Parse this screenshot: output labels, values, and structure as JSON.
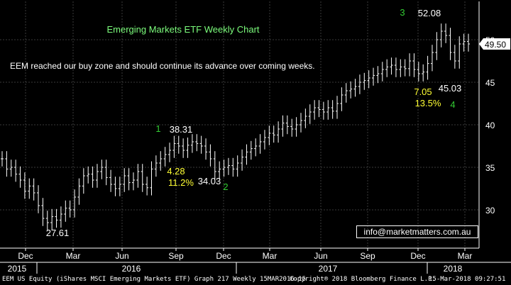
{
  "chart_data": {
    "type": "ohlc",
    "title": "Emerging Markets ETF Weekly Chart",
    "commentary": "EEM reached our buy zone and should continue its advance over coming weeks.",
    "ylim": [
      25.5,
      54.5
    ],
    "yticks": [
      30,
      35,
      40,
      45,
      50
    ],
    "last_price": 49.5,
    "x_month_labels": [
      "Dec",
      "Mar",
      "Jun",
      "Sep",
      "Dec",
      "Mar",
      "Jun",
      "Sep",
      "Dec",
      "Mar"
    ],
    "x_year_labels": [
      "2015",
      "2016",
      "2017",
      "2018"
    ],
    "series": [
      {
        "values": [
          36.0,
          34.8,
          35.0,
          34.2,
          33.5,
          32.2,
          32.8,
          32.0,
          30.5,
          29.0,
          28.5,
          29.2,
          28.8,
          29.5,
          30.2,
          30.0,
          31.5,
          32.8,
          34.0,
          34.2,
          33.5,
          34.5,
          35.0,
          33.8,
          33.0,
          32.5,
          33.0,
          34.0,
          33.2,
          33.5,
          34.5,
          33.0,
          32.6,
          34.8,
          35.5,
          36.0,
          36.5,
          37.0,
          37.8,
          37.5,
          37.0,
          37.6,
          38.0,
          37.8,
          37.5,
          36.8,
          36.0,
          34.5,
          34.8,
          35.0,
          35.2,
          34.8,
          35.5,
          36.2,
          36.8,
          37.2,
          37.5,
          38.0,
          38.5,
          39.0,
          38.8,
          39.5,
          40.2,
          39.8,
          39.5,
          40.0,
          40.5,
          41.0,
          41.5,
          42.0,
          41.8,
          41.5,
          42.0,
          41.6,
          42.5,
          43.5,
          44.0,
          44.2,
          44.5,
          45.0,
          45.2,
          45.5,
          45.8,
          46.0,
          46.5,
          46.8,
          47.0,
          46.5,
          46.8,
          46.6,
          47.5,
          46.5,
          46.0,
          46.2,
          47.2,
          48.5,
          50.0,
          51.0,
          50.5,
          48.5,
          47.5,
          49.5,
          49.8,
          49.5
        ]
      }
    ],
    "annotations": {
      "wave_1": "1",
      "wave_2": "2",
      "wave_3": "3",
      "wave_4": "4",
      "high_1": "38.31",
      "low_2": "34.03",
      "high_3": "52.08",
      "low_4": "45.03",
      "low_start": "27.61",
      "fall_1_points": "4.28",
      "fall_1_pct": "11.2%",
      "fall_2_points": "7.05",
      "fall_2_pct": "13.5%"
    },
    "colors": {
      "background": "#000000",
      "bars": "#ffffff",
      "grid": "#3a3a3a",
      "title": "#7cfc7c",
      "wave_labels": "#33cc33",
      "pullback_labels": "#ffff33",
      "price_tag_bg": "#ffffff",
      "price_tag_text": "#000000"
    }
  },
  "email": "info@marketmatters.com.au",
  "footer": {
    "left": "EEM US Equity (iShares MSCI Emerging Markets ETF) Graph 217  Weekly 15MAR2016-15",
    "middle": "Copyright® 2018 Bloomberg Finance L.P.",
    "right": "15-Mar-2018 09:27:51"
  }
}
